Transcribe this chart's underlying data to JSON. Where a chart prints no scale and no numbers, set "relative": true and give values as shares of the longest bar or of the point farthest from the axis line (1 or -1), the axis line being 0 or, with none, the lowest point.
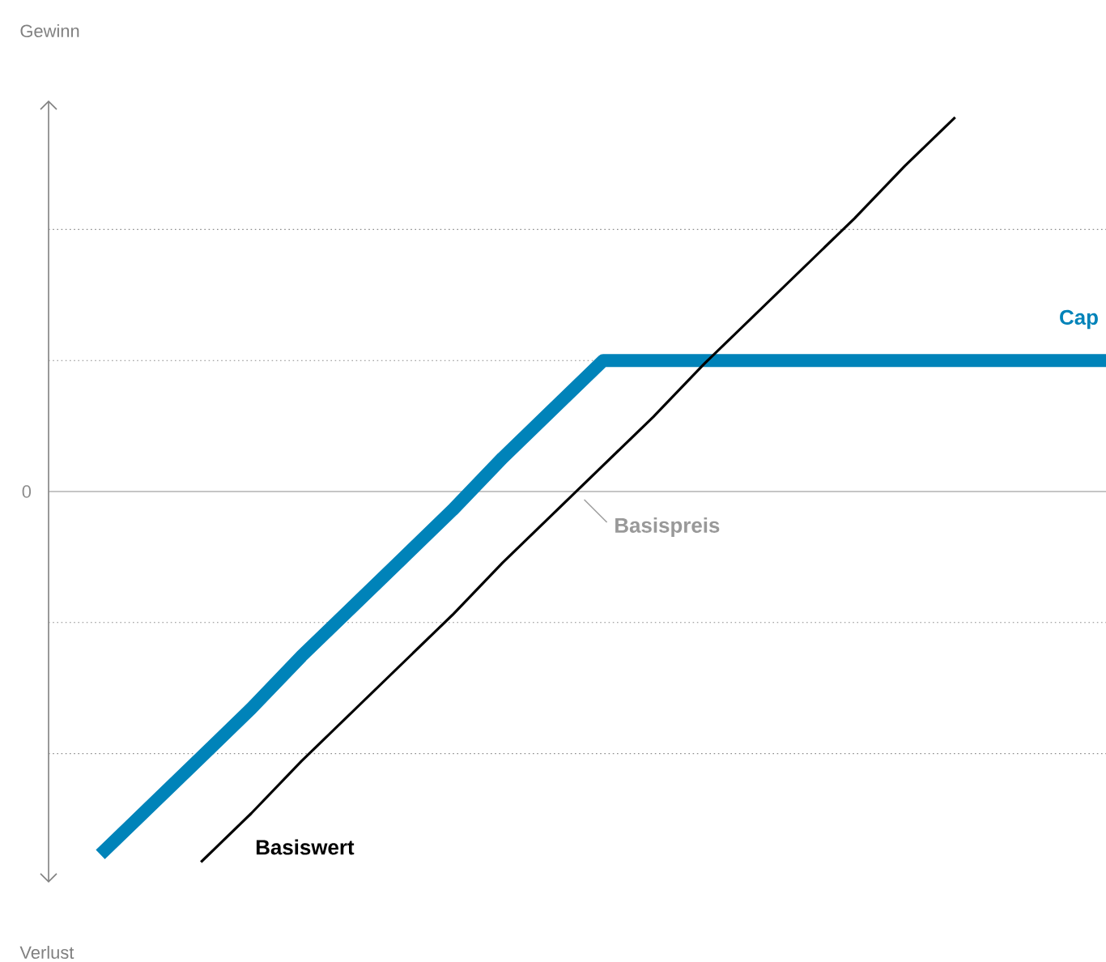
{
  "chart_data": {
    "type": "line",
    "relative": true,
    "marker": "none",
    "categories": [
      null,
      null,
      null,
      null,
      null,
      null,
      null,
      null,
      null,
      null,
      null,
      null,
      null,
      null,
      null,
      null,
      null,
      null,
      null,
      null,
      null
    ],
    "series": [
      {
        "name": "Cap",
        "color": "#0083b9",
        "values": [
          -0.97,
          -0.84,
          -0.71,
          -0.58,
          -0.44,
          -0.31,
          -0.18,
          -0.05,
          0.09,
          0.22,
          0.35,
          0.35,
          0.35,
          0.35,
          0.35,
          0.35,
          0.35,
          0.35,
          0.35,
          0.35,
          0.35
        ]
      },
      {
        "name": "Basiswert",
        "color": "#000000",
        "values": [
          null,
          null,
          -0.99,
          -0.86,
          -0.72,
          -0.59,
          -0.46,
          -0.33,
          -0.19,
          -0.06,
          0.07,
          0.2,
          0.34,
          0.47,
          0.6,
          0.73,
          0.87,
          1.0,
          null,
          null,
          null
        ]
      }
    ],
    "ref_lines": [
      {
        "axis": "y",
        "value": 0,
        "label": "0",
        "color": "#8c8c8c",
        "line_style": "solid"
      },
      {
        "axis": "y",
        "value": 0.35,
        "color": "#8c8c8c",
        "line_style": "dotted"
      },
      {
        "axis": "y",
        "value": 0.7,
        "color": "#8c8c8c",
        "line_style": "dotted"
      },
      {
        "axis": "y",
        "value": -0.35,
        "color": "#8c8c8c",
        "line_style": "dotted"
      },
      {
        "axis": "y",
        "value": -0.7,
        "color": "#8c8c8c",
        "line_style": "dotted"
      }
    ],
    "annotations": [
      "Gewinn",
      "Verlust",
      {
        "text": "Basispreis",
        "y": 0
      }
    ]
  }
}
